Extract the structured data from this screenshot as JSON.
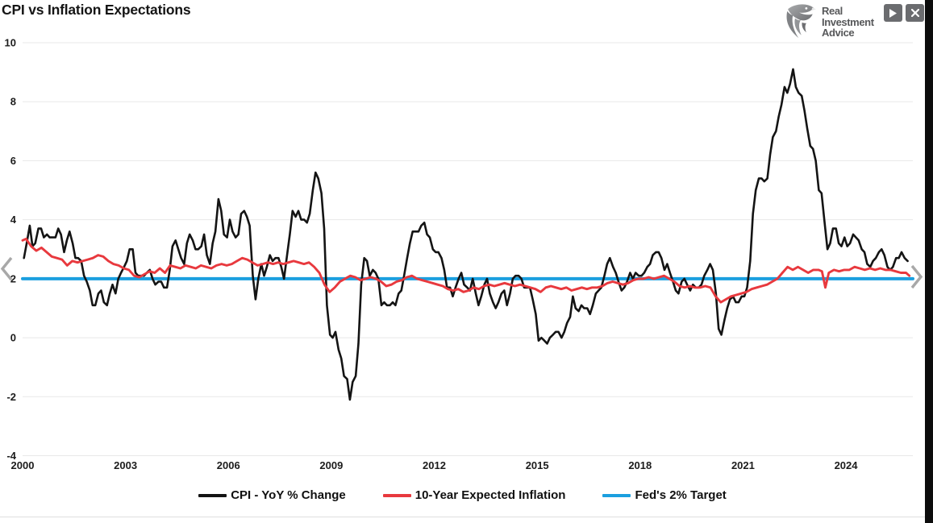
{
  "header": {
    "brand": {
      "name_lines": [
        "Real",
        "Investment",
        "Advice"
      ],
      "logo_icon": "eagle-shield-icon"
    },
    "controls": {
      "play_icon": "play-icon",
      "close_icon": "close-icon"
    }
  },
  "carousel": {
    "prev_icon": "chevron-left-icon",
    "next_icon": "chevron-right-icon"
  },
  "colors": {
    "cpi_line": "#141414",
    "expected_inflation_line": "#e8393e",
    "fed_target_line": "#1b9fdf",
    "grid": "#e8e8e8",
    "brand_gray": "#57585a",
    "button_gray": "#6b6c6f",
    "chevron_gray": "#a8a8a8"
  },
  "chart_data": {
    "type": "line",
    "title": "CPI vs Inflation Expectations",
    "xlabel": "",
    "ylabel": "",
    "x_domain": [
      2000,
      2025.95
    ],
    "y_domain": [
      -4,
      10
    ],
    "x_ticks": [
      2000,
      2003,
      2006,
      2009,
      2012,
      2015,
      2018,
      2021,
      2024
    ],
    "y_ticks": [
      10,
      8,
      6,
      4,
      2,
      0,
      -2,
      -4
    ],
    "grid": "horizontal",
    "legend_position": "bottom",
    "series": [
      {
        "name": "CPI - YoY % Change",
        "color": "#141414",
        "x": [
          2000.04,
          2000.12,
          2000.21,
          2000.29,
          2000.37,
          2000.46,
          2000.54,
          2000.62,
          2000.71,
          2000.79,
          2000.87,
          2000.96,
          2001.04,
          2001.12,
          2001.21,
          2001.29,
          2001.37,
          2001.46,
          2001.54,
          2001.62,
          2001.71,
          2001.79,
          2001.87,
          2001.96,
          2002.04,
          2002.12,
          2002.21,
          2002.29,
          2002.37,
          2002.46,
          2002.54,
          2002.62,
          2002.71,
          2002.79,
          2002.87,
          2002.96,
          2003.04,
          2003.12,
          2003.21,
          2003.29,
          2003.37,
          2003.46,
          2003.54,
          2003.62,
          2003.71,
          2003.79,
          2003.87,
          2003.96,
          2004.04,
          2004.12,
          2004.21,
          2004.29,
          2004.37,
          2004.46,
          2004.54,
          2004.62,
          2004.71,
          2004.79,
          2004.87,
          2004.96,
          2005.04,
          2005.12,
          2005.21,
          2005.29,
          2005.37,
          2005.46,
          2005.54,
          2005.62,
          2005.71,
          2005.79,
          2005.87,
          2005.96,
          2006.04,
          2006.12,
          2006.21,
          2006.29,
          2006.37,
          2006.46,
          2006.54,
          2006.62,
          2006.71,
          2006.79,
          2006.87,
          2006.96,
          2007.04,
          2007.12,
          2007.21,
          2007.29,
          2007.37,
          2007.46,
          2007.54,
          2007.62,
          2007.71,
          2007.79,
          2007.87,
          2007.96,
          2008.04,
          2008.12,
          2008.21,
          2008.29,
          2008.37,
          2008.46,
          2008.54,
          2008.62,
          2008.71,
          2008.79,
          2008.87,
          2008.96,
          2009.04,
          2009.12,
          2009.21,
          2009.29,
          2009.37,
          2009.46,
          2009.54,
          2009.62,
          2009.71,
          2009.79,
          2009.87,
          2009.96,
          2010.04,
          2010.12,
          2010.21,
          2010.29,
          2010.37,
          2010.46,
          2010.54,
          2010.62,
          2010.71,
          2010.79,
          2010.87,
          2010.96,
          2011.04,
          2011.12,
          2011.21,
          2011.29,
          2011.37,
          2011.46,
          2011.54,
          2011.62,
          2011.71,
          2011.79,
          2011.87,
          2011.96,
          2012.04,
          2012.12,
          2012.21,
          2012.29,
          2012.37,
          2012.46,
          2012.54,
          2012.62,
          2012.71,
          2012.79,
          2012.87,
          2012.96,
          2013.04,
          2013.12,
          2013.21,
          2013.29,
          2013.37,
          2013.46,
          2013.54,
          2013.62,
          2013.71,
          2013.79,
          2013.87,
          2013.96,
          2014.04,
          2014.12,
          2014.21,
          2014.29,
          2014.37,
          2014.46,
          2014.54,
          2014.62,
          2014.71,
          2014.79,
          2014.87,
          2014.96,
          2015.04,
          2015.12,
          2015.21,
          2015.29,
          2015.37,
          2015.46,
          2015.54,
          2015.62,
          2015.71,
          2015.79,
          2015.87,
          2015.96,
          2016.04,
          2016.12,
          2016.21,
          2016.29,
          2016.37,
          2016.46,
          2016.54,
          2016.62,
          2016.71,
          2016.79,
          2016.87,
          2016.96,
          2017.04,
          2017.12,
          2017.21,
          2017.29,
          2017.37,
          2017.46,
          2017.54,
          2017.62,
          2017.71,
          2017.79,
          2017.87,
          2017.96,
          2018.04,
          2018.12,
          2018.21,
          2018.29,
          2018.37,
          2018.46,
          2018.54,
          2018.62,
          2018.71,
          2018.79,
          2018.87,
          2018.96,
          2019.04,
          2019.12,
          2019.21,
          2019.29,
          2019.37,
          2019.46,
          2019.54,
          2019.62,
          2019.71,
          2019.79,
          2019.87,
          2019.96,
          2020.04,
          2020.12,
          2020.21,
          2020.29,
          2020.37,
          2020.46,
          2020.54,
          2020.62,
          2020.71,
          2020.79,
          2020.87,
          2020.96,
          2021.04,
          2021.12,
          2021.21,
          2021.29,
          2021.37,
          2021.46,
          2021.54,
          2021.62,
          2021.71,
          2021.79,
          2021.87,
          2021.96,
          2022.04,
          2022.12,
          2022.21,
          2022.29,
          2022.37,
          2022.46,
          2022.54,
          2022.62,
          2022.71,
          2022.79,
          2022.87,
          2022.96,
          2023.04,
          2023.12,
          2023.21,
          2023.29,
          2023.37,
          2023.46,
          2023.54,
          2023.62,
          2023.71,
          2023.79,
          2023.87,
          2023.96,
          2024.04,
          2024.12,
          2024.21,
          2024.29,
          2024.37,
          2024.46,
          2024.54,
          2024.62,
          2024.71,
          2024.79,
          2024.87,
          2024.96,
          2025.04,
          2025.12,
          2025.21,
          2025.29,
          2025.37,
          2025.46,
          2025.54,
          2025.62,
          2025.71,
          2025.8
        ],
        "values": [
          2.7,
          3.2,
          3.8,
          3.1,
          3.2,
          3.7,
          3.7,
          3.4,
          3.5,
          3.4,
          3.4,
          3.4,
          3.7,
          3.5,
          2.9,
          3.3,
          3.6,
          3.2,
          2.7,
          2.7,
          2.6,
          2.1,
          1.9,
          1.6,
          1.1,
          1.1,
          1.5,
          1.6,
          1.2,
          1.1,
          1.5,
          1.8,
          1.5,
          2.0,
          2.2,
          2.4,
          2.6,
          3.0,
          3.0,
          2.2,
          2.1,
          2.1,
          2.1,
          2.2,
          2.3,
          2.0,
          1.8,
          1.9,
          1.9,
          1.7,
          1.7,
          2.3,
          3.1,
          3.3,
          3.0,
          2.7,
          2.5,
          3.2,
          3.5,
          3.3,
          3.0,
          3.0,
          3.1,
          3.5,
          2.8,
          2.5,
          3.2,
          3.6,
          4.7,
          4.3,
          3.5,
          3.4,
          4.0,
          3.6,
          3.4,
          3.5,
          4.2,
          4.3,
          4.1,
          3.8,
          2.1,
          1.3,
          2.0,
          2.5,
          2.1,
          2.4,
          2.8,
          2.6,
          2.7,
          2.7,
          2.4,
          2.0,
          2.8,
          3.5,
          4.3,
          4.1,
          4.3,
          4.0,
          4.0,
          3.9,
          4.2,
          5.0,
          5.6,
          5.4,
          4.9,
          3.7,
          1.1,
          0.1,
          0.0,
          0.2,
          -0.4,
          -0.7,
          -1.3,
          -1.4,
          -2.1,
          -1.5,
          -1.3,
          -0.2,
          1.8,
          2.7,
          2.6,
          2.1,
          2.3,
          2.2,
          2.0,
          1.1,
          1.2,
          1.1,
          1.1,
          1.2,
          1.1,
          1.5,
          1.6,
          2.1,
          2.7,
          3.2,
          3.6,
          3.6,
          3.6,
          3.8,
          3.9,
          3.5,
          3.4,
          3.0,
          2.9,
          2.9,
          2.7,
          2.3,
          1.7,
          1.7,
          1.4,
          1.7,
          2.0,
          2.2,
          1.8,
          1.7,
          1.6,
          2.0,
          1.5,
          1.1,
          1.4,
          1.8,
          2.0,
          1.5,
          1.2,
          1.0,
          1.2,
          1.5,
          1.6,
          1.1,
          1.5,
          2.0,
          2.1,
          2.1,
          2.0,
          1.7,
          1.7,
          1.7,
          1.3,
          0.8,
          -0.1,
          0.0,
          -0.1,
          -0.2,
          0.0,
          0.1,
          0.2,
          0.2,
          0.0,
          0.2,
          0.5,
          0.7,
          1.4,
          1.0,
          0.9,
          1.1,
          1.0,
          1.0,
          0.8,
          1.1,
          1.5,
          1.6,
          1.7,
          2.1,
          2.5,
          2.7,
          2.4,
          2.2,
          1.9,
          1.6,
          1.7,
          1.9,
          2.2,
          2.0,
          2.2,
          2.1,
          2.1,
          2.2,
          2.4,
          2.5,
          2.8,
          2.9,
          2.9,
          2.7,
          2.3,
          2.5,
          2.2,
          1.9,
          1.6,
          1.5,
          1.9,
          2.0,
          1.8,
          1.6,
          1.8,
          1.7,
          1.7,
          1.8,
          2.1,
          2.3,
          2.5,
          2.3,
          1.5,
          0.3,
          0.1,
          0.6,
          1.0,
          1.3,
          1.4,
          1.2,
          1.2,
          1.4,
          1.4,
          1.7,
          2.6,
          4.2,
          5.0,
          5.4,
          5.4,
          5.3,
          5.4,
          6.2,
          6.8,
          7.0,
          7.5,
          7.9,
          8.5,
          8.3,
          8.6,
          9.1,
          8.5,
          8.3,
          8.2,
          7.7,
          7.1,
          6.5,
          6.4,
          6.0,
          5.0,
          4.9,
          4.0,
          3.0,
          3.2,
          3.7,
          3.7,
          3.2,
          3.1,
          3.4,
          3.1,
          3.2,
          3.5,
          3.4,
          3.3,
          3.0,
          2.9,
          2.5,
          2.4,
          2.6,
          2.7,
          2.9,
          3.0,
          2.8,
          2.4,
          2.3,
          2.4,
          2.7,
          2.7,
          2.9,
          2.7,
          2.6
        ]
      },
      {
        "name": "10-Year Expected Inflation",
        "color": "#e8393e",
        "x": [
          2000.0,
          2000.1,
          2000.25,
          2000.4,
          2000.55,
          2000.7,
          2000.85,
          2001.0,
          2001.15,
          2001.3,
          2001.45,
          2001.6,
          2001.75,
          2001.9,
          2002.05,
          2002.2,
          2002.35,
          2002.5,
          2002.65,
          2002.8,
          2002.95,
          2003.1,
          2003.25,
          2003.4,
          2003.55,
          2003.7,
          2003.85,
          2004.0,
          2004.15,
          2004.3,
          2004.45,
          2004.6,
          2004.75,
          2004.9,
          2005.05,
          2005.2,
          2005.35,
          2005.5,
          2005.65,
          2005.8,
          2005.95,
          2006.1,
          2006.25,
          2006.4,
          2006.55,
          2006.7,
          2006.85,
          2007.0,
          2007.15,
          2007.3,
          2007.45,
          2007.6,
          2007.75,
          2007.9,
          2008.05,
          2008.2,
          2008.35,
          2008.5,
          2008.65,
          2008.8,
          2008.95,
          2009.1,
          2009.25,
          2009.4,
          2009.55,
          2009.7,
          2009.85,
          2010.0,
          2010.15,
          2010.3,
          2010.45,
          2010.6,
          2010.75,
          2010.9,
          2011.05,
          2011.2,
          2011.35,
          2011.5,
          2011.65,
          2011.8,
          2011.95,
          2012.1,
          2012.25,
          2012.4,
          2012.55,
          2012.7,
          2012.85,
          2013.0,
          2013.15,
          2013.3,
          2013.45,
          2013.6,
          2013.75,
          2013.9,
          2014.05,
          2014.2,
          2014.35,
          2014.5,
          2014.65,
          2014.8,
          2014.95,
          2015.1,
          2015.25,
          2015.4,
          2015.55,
          2015.7,
          2015.85,
          2016.0,
          2016.15,
          2016.3,
          2016.45,
          2016.6,
          2016.75,
          2016.9,
          2017.05,
          2017.2,
          2017.35,
          2017.5,
          2017.65,
          2017.8,
          2017.95,
          2018.1,
          2018.25,
          2018.4,
          2018.55,
          2018.7,
          2018.85,
          2019.0,
          2019.15,
          2019.3,
          2019.45,
          2019.6,
          2019.75,
          2019.9,
          2020.05,
          2020.2,
          2020.35,
          2020.5,
          2020.65,
          2020.8,
          2020.95,
          2021.1,
          2021.25,
          2021.4,
          2021.55,
          2021.7,
          2021.85,
          2022.0,
          2022.15,
          2022.3,
          2022.45,
          2022.6,
          2022.75,
          2022.9,
          2023.05,
          2023.2,
          2023.3,
          2023.4,
          2023.5,
          2023.65,
          2023.8,
          2023.95,
          2024.1,
          2024.25,
          2024.4,
          2024.55,
          2024.7,
          2024.85,
          2025.0,
          2025.15,
          2025.3,
          2025.45,
          2025.6,
          2025.75,
          2025.85
        ],
        "values": [
          3.3,
          3.35,
          3.1,
          2.95,
          3.05,
          2.9,
          2.75,
          2.7,
          2.65,
          2.45,
          2.6,
          2.55,
          2.6,
          2.65,
          2.7,
          2.8,
          2.75,
          2.6,
          2.5,
          2.45,
          2.35,
          2.3,
          2.1,
          2.05,
          2.15,
          2.25,
          2.2,
          2.35,
          2.2,
          2.45,
          2.4,
          2.35,
          2.45,
          2.4,
          2.35,
          2.45,
          2.4,
          2.35,
          2.45,
          2.5,
          2.45,
          2.5,
          2.6,
          2.7,
          2.65,
          2.55,
          2.45,
          2.5,
          2.55,
          2.5,
          2.55,
          2.5,
          2.55,
          2.6,
          2.55,
          2.5,
          2.55,
          2.4,
          2.2,
          1.8,
          1.55,
          1.7,
          1.9,
          2.0,
          2.1,
          2.05,
          1.95,
          2.0,
          2.05,
          2.0,
          1.9,
          1.75,
          1.8,
          1.9,
          1.95,
          2.05,
          2.1,
          2.0,
          1.95,
          1.9,
          1.85,
          1.8,
          1.75,
          1.65,
          1.6,
          1.65,
          1.55,
          1.6,
          1.7,
          1.65,
          1.75,
          1.8,
          1.75,
          1.8,
          1.85,
          1.8,
          1.75,
          1.8,
          1.75,
          1.7,
          1.65,
          1.55,
          1.7,
          1.75,
          1.7,
          1.65,
          1.7,
          1.6,
          1.65,
          1.7,
          1.65,
          1.7,
          1.7,
          1.75,
          1.85,
          1.9,
          1.85,
          1.8,
          1.85,
          1.95,
          2.0,
          2.0,
          2.05,
          2.0,
          2.05,
          2.1,
          2.0,
          1.9,
          1.75,
          1.7,
          1.75,
          1.7,
          1.7,
          1.75,
          1.7,
          1.4,
          1.2,
          1.3,
          1.4,
          1.45,
          1.5,
          1.55,
          1.65,
          1.7,
          1.75,
          1.8,
          1.9,
          2.0,
          2.2,
          2.4,
          2.3,
          2.4,
          2.3,
          2.2,
          2.3,
          2.3,
          2.25,
          1.7,
          2.2,
          2.3,
          2.25,
          2.3,
          2.3,
          2.4,
          2.35,
          2.3,
          2.35,
          2.3,
          2.35,
          2.3,
          2.3,
          2.25,
          2.2,
          2.2,
          2.1
        ]
      },
      {
        "name": "Fed's 2% Target",
        "color": "#1b9fdf",
        "x": [
          2000.0,
          2025.95
        ],
        "values": [
          2,
          2
        ]
      }
    ]
  }
}
